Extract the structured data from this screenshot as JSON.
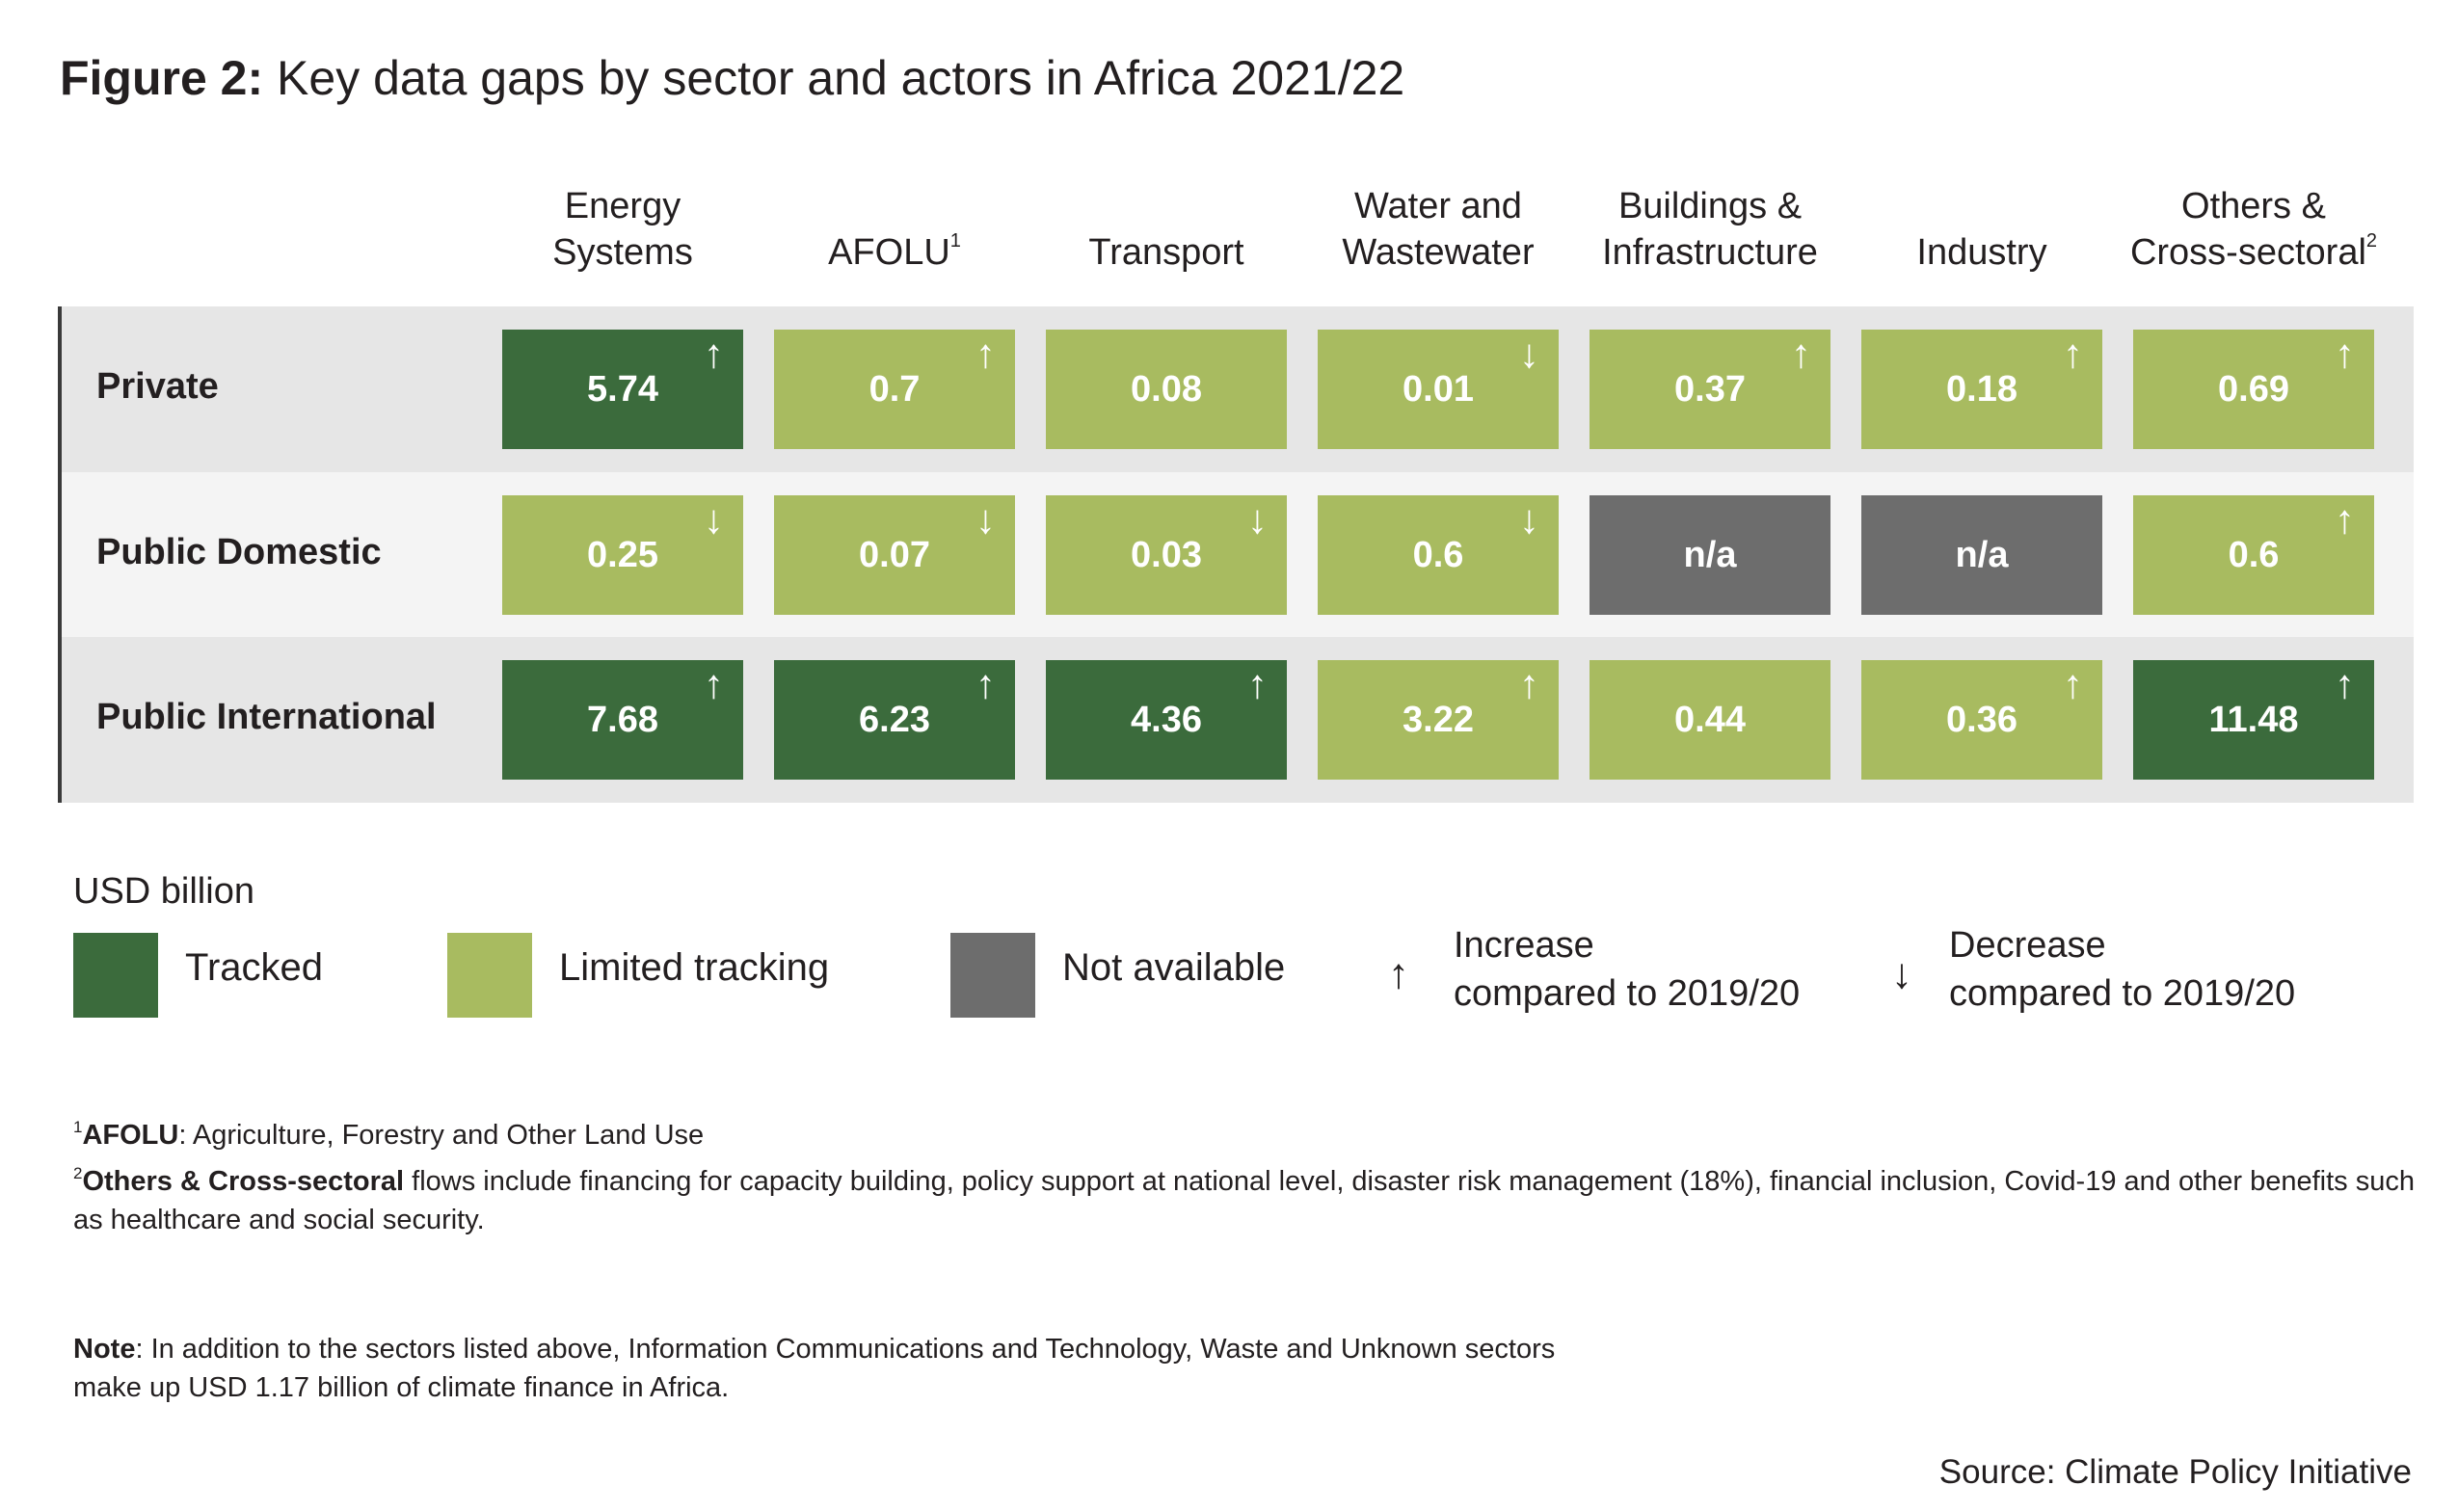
{
  "title": {
    "prefix": "Figure 2:",
    "text": "Key data gaps by sector and actors in Africa 2021/22"
  },
  "colors": {
    "tracked": "#3b6b3c",
    "limited": "#a8bb60",
    "not_available": "#6d6d6d",
    "band_dark": "#e6e6e6",
    "band_light": "#f4f4f4"
  },
  "chart_data": {
    "type": "table",
    "columns": [
      {
        "line1": "Energy",
        "line2": "Systems",
        "sup": ""
      },
      {
        "line1": "",
        "line2": "AFOLU",
        "sup": "1"
      },
      {
        "line1": "",
        "line2": "Transport",
        "sup": ""
      },
      {
        "line1": "Water and",
        "line2": "Wastewater",
        "sup": ""
      },
      {
        "line1": "Buildings &",
        "line2": "Infrastructure",
        "sup": ""
      },
      {
        "line1": "",
        "line2": "Industry",
        "sup": ""
      },
      {
        "line1": "Others &",
        "line2": "Cross-sectoral",
        "sup": "2"
      }
    ],
    "rows": [
      {
        "label": "Private",
        "cells": [
          {
            "value": "5.74",
            "status": "tracked",
            "trend": "up"
          },
          {
            "value": "0.7",
            "status": "limited",
            "trend": "up"
          },
          {
            "value": "0.08",
            "status": "limited",
            "trend": ""
          },
          {
            "value": "0.01",
            "status": "limited",
            "trend": "down"
          },
          {
            "value": "0.37",
            "status": "limited",
            "trend": "up"
          },
          {
            "value": "0.18",
            "status": "limited",
            "trend": "up"
          },
          {
            "value": "0.69",
            "status": "limited",
            "trend": "up"
          }
        ]
      },
      {
        "label": "Public Domestic",
        "cells": [
          {
            "value": "0.25",
            "status": "limited",
            "trend": "down"
          },
          {
            "value": "0.07",
            "status": "limited",
            "trend": "down"
          },
          {
            "value": "0.03",
            "status": "limited",
            "trend": "down"
          },
          {
            "value": "0.6",
            "status": "limited",
            "trend": "down"
          },
          {
            "value": "n/a",
            "status": "not_available",
            "trend": ""
          },
          {
            "value": "n/a",
            "status": "not_available",
            "trend": ""
          },
          {
            "value": "0.6",
            "status": "limited",
            "trend": "up"
          }
        ]
      },
      {
        "label": "Public International",
        "cells": [
          {
            "value": "7.68",
            "status": "tracked",
            "trend": "up"
          },
          {
            "value": "6.23",
            "status": "tracked",
            "trend": "up"
          },
          {
            "value": "4.36",
            "status": "tracked",
            "trend": "up"
          },
          {
            "value": "3.22",
            "status": "limited",
            "trend": "up"
          },
          {
            "value": "0.44",
            "status": "limited",
            "trend": ""
          },
          {
            "value": "0.36",
            "status": "limited",
            "trend": "up"
          },
          {
            "value": "11.48",
            "status": "tracked",
            "trend": "up"
          }
        ]
      }
    ]
  },
  "legend": {
    "unit": "USD billion",
    "tracked": "Tracked",
    "limited": "Limited tracking",
    "not_available": "Not available",
    "increase_line1": "Increase",
    "increase_line2": "compared to 2019/20",
    "decrease_line1": "Decrease",
    "decrease_line2": "compared to 2019/20",
    "up_glyph": "↑",
    "down_glyph": "↓"
  },
  "footnotes": {
    "fn1_sup": "1",
    "fn1_term": "AFOLU",
    "fn1_text": ": Agriculture, Forestry and Other Land Use",
    "fn2_sup": "2",
    "fn2_term": "Others & Cross-sectoral",
    "fn2_text": " flows include financing for capacity building, policy support at national level, disaster risk management (18%), financial inclusion, Covid-19 and other benefits such as healthcare and social security.",
    "note_term": "Note",
    "note_text": ": In addition to the sectors listed above, Information Communications and Technology, Waste and Unknown sectors make up USD 1.17 billion of climate finance in Africa."
  },
  "source": "Source: Climate Policy Initiative"
}
